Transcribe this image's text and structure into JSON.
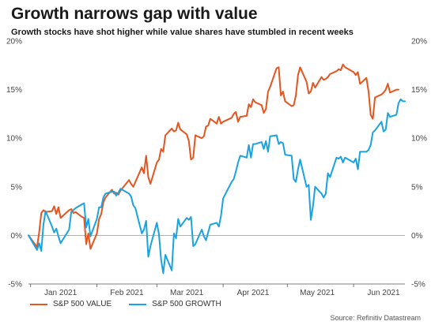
{
  "title": "Growth narrows gap with value",
  "subtitle": "Growth stocks have shot higher while value shares have stumbled in recent weeks",
  "source": "Source: Refinitiv Datastream",
  "colors": {
    "value": "#e4551f",
    "growth": "#1aa3e0",
    "zero_line": "#999999"
  },
  "chart_data": {
    "type": "line",
    "title": "Growth narrows gap with value",
    "xlabel": "",
    "ylabel": "",
    "ylim": [
      -5,
      20
    ],
    "ytick_values": [
      -5,
      0,
      5,
      10,
      15,
      20
    ],
    "ytick_labels": [
      "-5%",
      "0%",
      "5%",
      "10%",
      "15%",
      "20%"
    ],
    "xticks": [
      {
        "label": "Jan 2021",
        "date": "2021-01-15"
      },
      {
        "label": "Feb 2021",
        "date": "2021-02-15"
      },
      {
        "label": "Mar 2021",
        "date": "2021-03-15"
      },
      {
        "label": "Apr 2021",
        "date": "2021-04-15"
      },
      {
        "label": "May 2021",
        "date": "2021-05-15"
      },
      {
        "label": "Jun 2021",
        "date": "2021-06-15"
      }
    ],
    "x_range": [
      "2020-12-31",
      "2021-06-25"
    ],
    "grid": false,
    "legend": "bottom-left",
    "series": [
      {
        "name": "S&P 500 VALUE",
        "color": "#e4551f",
        "points": [
          [
            "2020-12-31",
            0.0
          ],
          [
            "2021-01-04",
            -1.2
          ],
          [
            "2021-01-05",
            0.3
          ],
          [
            "2021-01-06",
            2.3
          ],
          [
            "2021-01-07",
            2.6
          ],
          [
            "2021-01-08",
            2.4
          ],
          [
            "2021-01-11",
            2.5
          ],
          [
            "2021-01-12",
            3.0
          ],
          [
            "2021-01-13",
            2.2
          ],
          [
            "2021-01-14",
            2.9
          ],
          [
            "2021-01-15",
            1.8
          ],
          [
            "2021-01-19",
            2.6
          ],
          [
            "2021-01-20",
            2.7
          ],
          [
            "2021-01-21",
            2.3
          ],
          [
            "2021-01-22",
            2.4
          ],
          [
            "2021-01-25",
            1.9
          ],
          [
            "2021-01-26",
            1.8
          ],
          [
            "2021-01-27",
            -0.9
          ],
          [
            "2021-01-28",
            0.2
          ],
          [
            "2021-01-29",
            -1.4
          ],
          [
            "2021-02-01",
            0.2
          ],
          [
            "2021-02-02",
            1.7
          ],
          [
            "2021-02-03",
            2.2
          ],
          [
            "2021-02-04",
            3.4
          ],
          [
            "2021-02-05",
            3.9
          ],
          [
            "2021-02-08",
            4.7
          ],
          [
            "2021-02-09",
            4.3
          ],
          [
            "2021-02-10",
            4.4
          ],
          [
            "2021-02-11",
            4.2
          ],
          [
            "2021-02-12",
            4.6
          ],
          [
            "2021-02-16",
            5.7
          ],
          [
            "2021-02-17",
            5.3
          ],
          [
            "2021-02-18",
            5.0
          ],
          [
            "2021-02-19",
            5.5
          ],
          [
            "2021-02-22",
            7.0
          ],
          [
            "2021-02-23",
            6.4
          ],
          [
            "2021-02-24",
            8.2
          ],
          [
            "2021-02-25",
            6.0
          ],
          [
            "2021-02-26",
            5.3
          ],
          [
            "2021-03-01",
            7.5
          ],
          [
            "2021-03-02",
            7.8
          ],
          [
            "2021-03-03",
            8.9
          ],
          [
            "2021-03-04",
            8.6
          ],
          [
            "2021-03-05",
            10.3
          ],
          [
            "2021-03-08",
            11.0
          ],
          [
            "2021-03-09",
            10.7
          ],
          [
            "2021-03-10",
            10.8
          ],
          [
            "2021-03-11",
            11.6
          ],
          [
            "2021-03-12",
            10.9
          ],
          [
            "2021-03-15",
            10.4
          ],
          [
            "2021-03-16",
            9.7
          ],
          [
            "2021-03-17",
            7.8
          ],
          [
            "2021-03-18",
            8.0
          ],
          [
            "2021-03-19",
            10.3
          ],
          [
            "2021-03-22",
            10.0
          ],
          [
            "2021-03-23",
            10.2
          ],
          [
            "2021-03-24",
            11.2
          ],
          [
            "2021-03-25",
            11.3
          ],
          [
            "2021-03-26",
            12.0
          ],
          [
            "2021-03-29",
            11.5
          ],
          [
            "2021-03-30",
            12.2
          ],
          [
            "2021-03-31",
            11.5
          ],
          [
            "2021-04-01",
            11.7
          ],
          [
            "2021-04-05",
            12.1
          ],
          [
            "2021-04-06",
            12.5
          ],
          [
            "2021-04-07",
            12.7
          ],
          [
            "2021-04-08",
            11.7
          ],
          [
            "2021-04-09",
            12.2
          ],
          [
            "2021-04-12",
            12.3
          ],
          [
            "2021-04-13",
            13.5
          ],
          [
            "2021-04-14",
            13.2
          ],
          [
            "2021-04-15",
            14.0
          ],
          [
            "2021-04-16",
            13.7
          ],
          [
            "2021-04-19",
            13.4
          ],
          [
            "2021-04-20",
            12.6
          ],
          [
            "2021-04-21",
            13.0
          ],
          [
            "2021-04-22",
            14.8
          ],
          [
            "2021-04-23",
            15.3
          ],
          [
            "2021-04-26",
            17.2
          ],
          [
            "2021-04-27",
            17.3
          ],
          [
            "2021-04-28",
            14.4
          ],
          [
            "2021-04-29",
            14.8
          ],
          [
            "2021-04-30",
            13.8
          ],
          [
            "2021-05-03",
            13.3
          ],
          [
            "2021-05-04",
            13.4
          ],
          [
            "2021-05-05",
            14.4
          ],
          [
            "2021-05-06",
            16.5
          ],
          [
            "2021-05-07",
            17.3
          ],
          [
            "2021-05-10",
            15.8
          ],
          [
            "2021-05-11",
            14.6
          ],
          [
            "2021-05-12",
            14.8
          ],
          [
            "2021-05-13",
            15.7
          ],
          [
            "2021-05-14",
            15.2
          ],
          [
            "2021-05-17",
            16.3
          ],
          [
            "2021-05-18",
            16.0
          ],
          [
            "2021-05-19",
            16.1
          ],
          [
            "2021-05-20",
            16.3
          ],
          [
            "2021-05-21",
            16.6
          ],
          [
            "2021-05-24",
            16.9
          ],
          [
            "2021-05-25",
            17.1
          ],
          [
            "2021-05-26",
            17.0
          ],
          [
            "2021-05-27",
            17.6
          ],
          [
            "2021-05-28",
            17.3
          ],
          [
            "2021-06-01",
            16.8
          ],
          [
            "2021-06-02",
            16.5
          ],
          [
            "2021-06-03",
            16.8
          ],
          [
            "2021-06-04",
            15.6
          ],
          [
            "2021-06-07",
            16.2
          ],
          [
            "2021-06-08",
            14.8
          ],
          [
            "2021-06-09",
            12.4
          ],
          [
            "2021-06-10",
            12.0
          ],
          [
            "2021-06-11",
            14.2
          ],
          [
            "2021-06-14",
            14.5
          ],
          [
            "2021-06-15",
            14.7
          ],
          [
            "2021-06-16",
            15.0
          ],
          [
            "2021-06-17",
            15.6
          ],
          [
            "2021-06-18",
            14.7
          ],
          [
            "2021-06-21",
            15.0
          ],
          [
            "2021-06-22",
            15.0
          ]
        ]
      },
      {
        "name": "S&P 500 GROWTH",
        "color": "#1aa3e0",
        "points": [
          [
            "2020-12-31",
            0.0
          ],
          [
            "2021-01-04",
            -1.5
          ],
          [
            "2021-01-05",
            -0.8
          ],
          [
            "2021-01-06",
            -1.6
          ],
          [
            "2021-01-07",
            1.1
          ],
          [
            "2021-01-08",
            2.5
          ],
          [
            "2021-01-11",
            0.9
          ],
          [
            "2021-01-12",
            0.3
          ],
          [
            "2021-01-13",
            0.7
          ],
          [
            "2021-01-14",
            -0.1
          ],
          [
            "2021-01-15",
            -0.8
          ],
          [
            "2021-01-19",
            0.6
          ],
          [
            "2021-01-20",
            2.4
          ],
          [
            "2021-01-21",
            2.6
          ],
          [
            "2021-01-22",
            2.8
          ],
          [
            "2021-01-25",
            3.2
          ],
          [
            "2021-01-26",
            3.3
          ],
          [
            "2021-01-27",
            0.8
          ],
          [
            "2021-01-28",
            1.7
          ],
          [
            "2021-01-29",
            -0.1
          ],
          [
            "2021-02-01",
            1.7
          ],
          [
            "2021-02-02",
            2.9
          ],
          [
            "2021-02-03",
            2.9
          ],
          [
            "2021-02-04",
            3.9
          ],
          [
            "2021-02-05",
            4.3
          ],
          [
            "2021-02-08",
            4.5
          ],
          [
            "2021-02-09",
            4.5
          ],
          [
            "2021-02-10",
            4.1
          ],
          [
            "2021-02-11",
            4.4
          ],
          [
            "2021-02-12",
            4.8
          ],
          [
            "2021-02-16",
            4.3
          ],
          [
            "2021-02-17",
            4.0
          ],
          [
            "2021-02-18",
            3.1
          ],
          [
            "2021-02-19",
            2.8
          ],
          [
            "2021-02-22",
            0.2
          ],
          [
            "2021-02-23",
            0.6
          ],
          [
            "2021-02-24",
            1.5
          ],
          [
            "2021-02-25",
            -2.2
          ],
          [
            "2021-02-26",
            -1.1
          ],
          [
            "2021-03-01",
            1.3
          ],
          [
            "2021-03-02",
            0.1
          ],
          [
            "2021-03-03",
            -2.5
          ],
          [
            "2021-03-04",
            -3.9
          ],
          [
            "2021-03-05",
            -2.0
          ],
          [
            "2021-03-08",
            -3.6
          ],
          [
            "2021-03-09",
            0.2
          ],
          [
            "2021-03-10",
            -0.3
          ],
          [
            "2021-03-11",
            1.7
          ],
          [
            "2021-03-12",
            0.9
          ],
          [
            "2021-03-15",
            1.8
          ],
          [
            "2021-03-16",
            1.6
          ],
          [
            "2021-03-17",
            1.9
          ],
          [
            "2021-03-18",
            -1.1
          ],
          [
            "2021-03-19",
            -0.9
          ],
          [
            "2021-03-22",
            0.6
          ],
          [
            "2021-03-23",
            -0.1
          ],
          [
            "2021-03-24",
            -0.5
          ],
          [
            "2021-03-25",
            0.3
          ],
          [
            "2021-03-26",
            1.1
          ],
          [
            "2021-03-29",
            1.3
          ],
          [
            "2021-03-30",
            0.9
          ],
          [
            "2021-03-31",
            2.0
          ],
          [
            "2021-04-01",
            3.8
          ],
          [
            "2021-04-05",
            5.5
          ],
          [
            "2021-04-06",
            5.8
          ],
          [
            "2021-04-07",
            6.6
          ],
          [
            "2021-04-08",
            7.5
          ],
          [
            "2021-04-09",
            8.2
          ],
          [
            "2021-04-12",
            8.0
          ],
          [
            "2021-04-13",
            9.3
          ],
          [
            "2021-04-14",
            8.0
          ],
          [
            "2021-04-15",
            9.4
          ],
          [
            "2021-04-16",
            9.4
          ],
          [
            "2021-04-19",
            9.6
          ],
          [
            "2021-04-20",
            8.9
          ],
          [
            "2021-04-21",
            9.7
          ],
          [
            "2021-04-22",
            8.6
          ],
          [
            "2021-04-23",
            10.2
          ],
          [
            "2021-04-26",
            10.3
          ],
          [
            "2021-04-27",
            9.4
          ],
          [
            "2021-04-28",
            9.6
          ],
          [
            "2021-04-29",
            9.5
          ],
          [
            "2021-04-30",
            8.3
          ],
          [
            "2021-05-03",
            8.2
          ],
          [
            "2021-05-04",
            5.8
          ],
          [
            "2021-05-05",
            5.5
          ],
          [
            "2021-05-06",
            6.8
          ],
          [
            "2021-05-07",
            7.8
          ],
          [
            "2021-05-10",
            5.0
          ],
          [
            "2021-05-11",
            5.2
          ],
          [
            "2021-05-12",
            1.6
          ],
          [
            "2021-05-13",
            3.0
          ],
          [
            "2021-05-14",
            5.0
          ],
          [
            "2021-05-17",
            4.3
          ],
          [
            "2021-05-18",
            3.9
          ],
          [
            "2021-05-19",
            4.3
          ],
          [
            "2021-05-20",
            6.4
          ],
          [
            "2021-05-21",
            6.0
          ],
          [
            "2021-05-24",
            8.0
          ],
          [
            "2021-05-25",
            7.9
          ],
          [
            "2021-05-26",
            8.1
          ],
          [
            "2021-05-27",
            7.5
          ],
          [
            "2021-05-28",
            8.0
          ],
          [
            "2021-06-01",
            7.5
          ],
          [
            "2021-06-02",
            7.9
          ],
          [
            "2021-06-03",
            6.8
          ],
          [
            "2021-06-04",
            8.6
          ],
          [
            "2021-06-07",
            8.6
          ],
          [
            "2021-06-08",
            8.8
          ],
          [
            "2021-06-09",
            9.3
          ],
          [
            "2021-06-10",
            10.6
          ],
          [
            "2021-06-11",
            10.8
          ],
          [
            "2021-06-14",
            11.7
          ],
          [
            "2021-06-15",
            10.7
          ],
          [
            "2021-06-16",
            10.9
          ],
          [
            "2021-06-17",
            12.6
          ],
          [
            "2021-06-18",
            12.2
          ],
          [
            "2021-06-21",
            12.4
          ],
          [
            "2021-06-22",
            13.6
          ],
          [
            "2021-06-23",
            14.0
          ],
          [
            "2021-06-24",
            13.8
          ],
          [
            "2021-06-25",
            13.8
          ]
        ]
      }
    ]
  }
}
